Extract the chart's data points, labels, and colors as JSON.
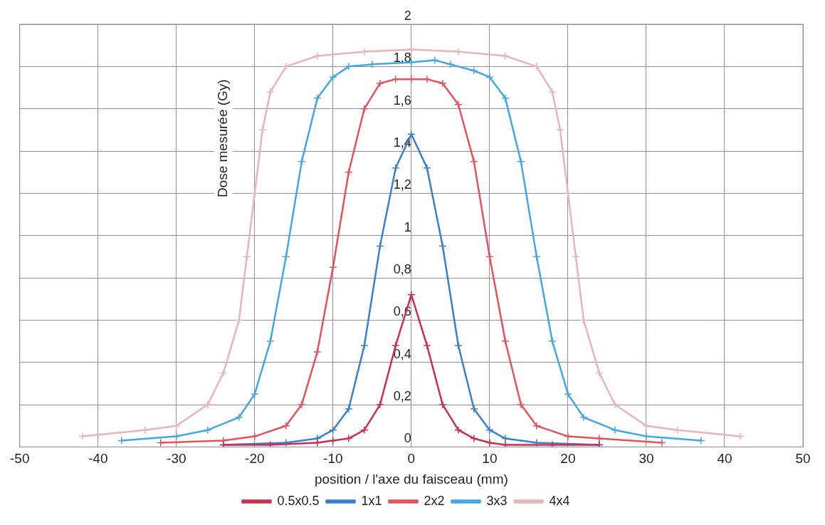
{
  "chart_data": {
    "type": "line",
    "xlabel": "position / l'axe du faisceau (mm)",
    "ylabel": "Dose mesurée (Gy)",
    "xlim": [
      -50,
      50
    ],
    "xticks": [
      -50,
      -40,
      -30,
      -20,
      -10,
      0,
      10,
      20,
      30,
      40,
      50
    ],
    "ylim": [
      0,
      2
    ],
    "yticks": [
      {
        "value": 0,
        "label": "0"
      },
      {
        "value": 0.2,
        "label": "0,2"
      },
      {
        "value": 0.4,
        "label": "0,4"
      },
      {
        "value": 0.6,
        "label": "0,6"
      },
      {
        "value": 0.8,
        "label": "0,8"
      },
      {
        "value": 1,
        "label": "1"
      },
      {
        "value": 1.2,
        "label": "1,2"
      },
      {
        "value": 1.4,
        "label": "1,4"
      },
      {
        "value": 1.6,
        "label": "1,6"
      },
      {
        "value": 1.8,
        "label": "1,8"
      },
      {
        "value": 2,
        "label": "2"
      }
    ],
    "grid": true,
    "legend": "bottom",
    "marker": "cross",
    "line_style": "solid",
    "series": [
      {
        "name": "0.5x0.5",
        "color": "#c8304c",
        "x": [
          -24,
          -18,
          -12,
          -10,
          -8,
          -6,
          -4,
          -2,
          0,
          2,
          4,
          6,
          8,
          10,
          12,
          18,
          24
        ],
        "values": [
          0.01,
          0.01,
          0.02,
          0.03,
          0.04,
          0.08,
          0.2,
          0.48,
          0.72,
          0.48,
          0.2,
          0.08,
          0.04,
          0.02,
          0.01,
          0.01,
          0.01
        ]
      },
      {
        "name": "1x1",
        "color": "#3a7fd0",
        "x": [
          -24,
          -16,
          -12,
          -10,
          -8,
          -6,
          -4,
          -2,
          0,
          2,
          4,
          6,
          8,
          10,
          12,
          16,
          24
        ],
        "values": [
          0.01,
          0.02,
          0.04,
          0.08,
          0.18,
          0.48,
          0.95,
          1.32,
          1.48,
          1.32,
          0.95,
          0.48,
          0.18,
          0.08,
          0.04,
          0.02,
          0.01
        ]
      },
      {
        "name": "2x2",
        "color": "#e8505c",
        "x": [
          -32,
          -24,
          -20,
          -16,
          -14,
          -12,
          -10,
          -8,
          -6,
          -4,
          -2,
          0,
          2,
          4,
          6,
          8,
          10,
          12,
          14,
          16,
          20,
          24,
          32
        ],
        "values": [
          0.02,
          0.03,
          0.05,
          0.1,
          0.2,
          0.45,
          0.85,
          1.3,
          1.6,
          1.72,
          1.74,
          1.74,
          1.74,
          1.72,
          1.62,
          1.35,
          0.9,
          0.5,
          0.2,
          0.1,
          0.05,
          0.04,
          0.02
        ]
      },
      {
        "name": "3x3",
        "color": "#40a8e8",
        "x": [
          -37,
          -30,
          -26,
          -22,
          -20,
          -18,
          -16,
          -14,
          -12,
          -10,
          -8,
          -5,
          0,
          3,
          5,
          8,
          10,
          12,
          14,
          16,
          18,
          20,
          22,
          26,
          30,
          37
        ],
        "values": [
          0.03,
          0.05,
          0.08,
          0.14,
          0.25,
          0.5,
          0.9,
          1.35,
          1.65,
          1.75,
          1.8,
          1.81,
          1.82,
          1.83,
          1.81,
          1.78,
          1.75,
          1.65,
          1.35,
          0.9,
          0.5,
          0.25,
          0.14,
          0.08,
          0.05,
          0.03
        ]
      },
      {
        "name": "4x4",
        "color": "#e8b4bc",
        "x": [
          -42,
          -34,
          -30,
          -26,
          -24,
          -22,
          -21,
          -20,
          -19,
          -18,
          -16,
          -12,
          -6,
          0,
          6,
          12,
          16,
          18,
          19,
          20,
          21,
          22,
          24,
          26,
          30,
          34,
          42
        ],
        "values": [
          0.05,
          0.08,
          0.1,
          0.2,
          0.35,
          0.6,
          0.9,
          1.2,
          1.5,
          1.68,
          1.8,
          1.85,
          1.87,
          1.88,
          1.87,
          1.85,
          1.8,
          1.68,
          1.5,
          1.2,
          0.9,
          0.6,
          0.35,
          0.2,
          0.1,
          0.08,
          0.05
        ]
      }
    ]
  }
}
